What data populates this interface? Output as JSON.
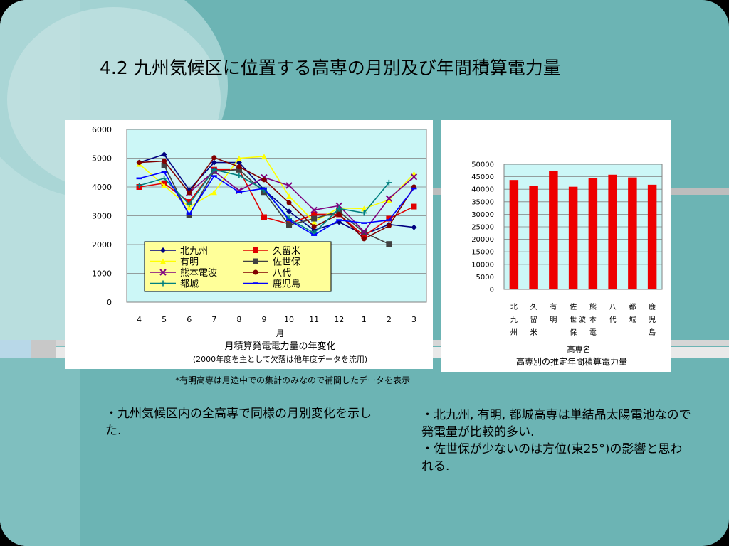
{
  "title": "4.2  九州気候区に位置する高専の月別及び年間積算電力量",
  "footnote": "*有明高専は月途中での集計のみなので補間したデータを表示",
  "bullets_left": [
    "・九州気候区内の全高専で同様の月別変化を示した."
  ],
  "bullets_right": [
    "・北九州, 有明, 都城高専は単結晶太陽電池なので発電量が比較的多い.",
    "・佐世保が少ないのは方位(東25°)の影響と思われる."
  ],
  "chart_data": [
    {
      "type": "line",
      "title": "月積算発電電力量の年変化",
      "subtitle": "(2000年度を主として欠落は他年度データを流用)",
      "xlabel": "月",
      "ylabel": "",
      "categories": [
        "4",
        "5",
        "6",
        "7",
        "8",
        "9",
        "10",
        "11",
        "12",
        "1",
        "2",
        "3"
      ],
      "ylim": [
        0,
        6000
      ],
      "yticks": [
        0,
        1000,
        2000,
        3000,
        4000,
        5000,
        6000
      ],
      "grid": true,
      "legend_placement": "bottom-left",
      "series": [
        {
          "name": "北九州",
          "color": "#000080",
          "marker": "diamond",
          "values": [
            4850,
            5130,
            3900,
            4850,
            4850,
            3900,
            3150,
            2500,
            2780,
            2350,
            2700,
            2600
          ]
        },
        {
          "name": "久留米",
          "color": "#e00000",
          "marker": "square",
          "values": [
            4000,
            4130,
            3480,
            4600,
            4600,
            2950,
            2720,
            3050,
            3050,
            2300,
            2900,
            3320
          ]
        },
        {
          "name": "有明",
          "color": "#ffff00",
          "marker": "triangle",
          "values": [
            4800,
            4050,
            3300,
            3820,
            5000,
            5060,
            3680,
            2800,
            3270,
            3250,
            3550,
            4460
          ]
        },
        {
          "name": "佐世保",
          "color": "#404040",
          "marker": "square",
          "values": [
            null,
            4750,
            3020,
            4550,
            4600,
            3820,
            2680,
            2900,
            3150,
            2420,
            2020,
            null
          ]
        },
        {
          "name": "熊本電波",
          "color": "#800080",
          "marker": "x",
          "values": [
            null,
            null,
            3800,
            4550,
            3870,
            4330,
            4050,
            3200,
            3350,
            2450,
            3600,
            4350
          ]
        },
        {
          "name": "八代",
          "color": "#800000",
          "marker": "circle",
          "values": [
            4850,
            4900,
            3800,
            5020,
            4700,
            4250,
            3450,
            2620,
            3050,
            2200,
            2650,
            4000
          ]
        },
        {
          "name": "都城",
          "color": "#008080",
          "marker": "plus",
          "values": [
            4050,
            4300,
            3400,
            4600,
            4400,
            3900,
            2900,
            2400,
            3250,
            3100,
            4150,
            null
          ]
        },
        {
          "name": "鹿児島",
          "color": "#0000ff",
          "marker": "dash",
          "values": [
            4300,
            4520,
            3050,
            4380,
            3820,
            3950,
            2850,
            2330,
            2850,
            2750,
            2850,
            3950
          ]
        }
      ]
    },
    {
      "type": "bar",
      "title": "高専別の推定年間積算電力量",
      "xlabel": "高専名",
      "ylabel": "",
      "categories": [
        "北九州",
        "久留米",
        "有明",
        "佐世保",
        "熊本電波",
        "八代",
        "都城",
        "鹿児島"
      ],
      "category_labels": [
        [
          "北",
          "九",
          "州"
        ],
        [
          "久",
          "留",
          "米"
        ],
        [
          "有",
          "明"
        ],
        [
          "佐",
          "世",
          "保"
        ],
        [
          "熊",
          "本",
          "電"
        ],
        [
          "八",
          "代"
        ],
        [
          "都",
          "城"
        ],
        [
          "鹿",
          "児",
          "島"
        ]
      ],
      "category_extra": {
        "index": 4,
        "text": "波"
      },
      "values": [
        43700,
        41300,
        47400,
        41000,
        44400,
        45800,
        44700,
        41800
      ],
      "ylim": [
        0,
        50000
      ],
      "yticks": [
        0,
        5000,
        10000,
        15000,
        20000,
        25000,
        30000,
        35000,
        40000,
        45000,
        50000
      ],
      "bar_color": "#ee0000",
      "grid": true
    }
  ]
}
